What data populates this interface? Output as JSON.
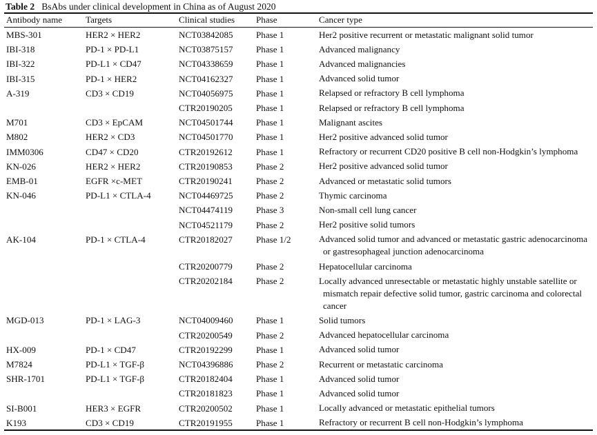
{
  "caption": {
    "label": "Table 2",
    "title": "BsAbs under clinical development in China as of August 2020"
  },
  "columns": [
    "Antibody name",
    "Targets",
    "Clinical studies",
    "Phase",
    "Cancer type"
  ],
  "rows": [
    {
      "antibody": "MBS-301",
      "targets": "HER2 × HER2",
      "study": "NCT03842085",
      "phase": "Phase 1",
      "cancer": "Her2 positive recurrent or metastatic malignant solid tumor"
    },
    {
      "antibody": "IBI-318",
      "targets": "PD-1 × PD-L1",
      "study": "NCT03875157",
      "phase": "Phase 1",
      "cancer": "Advanced malignancy"
    },
    {
      "antibody": "IBI-322",
      "targets": "PD-L1 × CD47",
      "study": "NCT04338659",
      "phase": "Phase 1",
      "cancer": "Advanced malignancies"
    },
    {
      "antibody": "IBI-315",
      "targets": "PD-1 × HER2",
      "study": "NCT04162327",
      "phase": "Phase 1",
      "cancer": "Advanced solid tumor"
    },
    {
      "antibody": "A-319",
      "targets": "CD3 × CD19",
      "study": "NCT04056975",
      "phase": "Phase 1",
      "cancer": "Relapsed or refractory B cell lymphoma"
    },
    {
      "antibody": "",
      "targets": "",
      "study": "CTR20190205",
      "phase": "Phase 1",
      "cancer": "Relapsed or refractory B cell lymphoma"
    },
    {
      "antibody": "M701",
      "targets": "CD3 × EpCAM",
      "study": "NCT04501744",
      "phase": "Phase 1",
      "cancer": "Malignant ascites"
    },
    {
      "antibody": "M802",
      "targets": "HER2 × CD3",
      "study": "NCT04501770",
      "phase": "Phase 1",
      "cancer": "Her2 positive advanced solid tumor"
    },
    {
      "antibody": "IMM0306",
      "targets": "CD47 × CD20",
      "study": "CTR20192612",
      "phase": "Phase 1",
      "cancer": "Refractory or recurrent CD20 positive B cell non-Hodgkin’s lymphoma"
    },
    {
      "antibody": "KN-026",
      "targets": "HER2 × HER2",
      "study": "CTR20190853",
      "phase": "Phase 2",
      "cancer": "Her2 positive advanced solid tumor"
    },
    {
      "antibody": "EMB-01",
      "targets": "EGFR ×c-MET",
      "study": "CTR20190241",
      "phase": "Phase 2",
      "cancer": "Advanced or metastatic solid tumors"
    },
    {
      "antibody": "KN-046",
      "targets": "PD-L1 × CTLA-4",
      "study": "NCT04469725",
      "phase": "Phase 2",
      "cancer": "Thymic carcinoma"
    },
    {
      "antibody": "",
      "targets": "",
      "study": "NCT04474119",
      "phase": "Phase 3",
      "cancer": "Non-small cell lung cancer"
    },
    {
      "antibody": "",
      "targets": "",
      "study": "NCT04521179",
      "phase": "Phase 2",
      "cancer": "Her2 positive solid tumors"
    },
    {
      "antibody": "AK-104",
      "targets": "PD-1 × CTLA-4",
      "study": "CTR20182027",
      "phase": "Phase 1/2",
      "cancer": "Advanced solid tumor and advanced or metastatic gastric adenocarcinoma or gastresophageal junction adenocarcinoma"
    },
    {
      "antibody": "",
      "targets": "",
      "study": "CTR20200779",
      "phase": "Phase 2",
      "cancer": "Hepatocellular carcinoma"
    },
    {
      "antibody": "",
      "targets": "",
      "study": "CTR20202184",
      "phase": "Phase 2",
      "cancer": "Locally advanced unresectable or metastatic highly unstable satellite or mismatch repair defective solid tumor, gastric carcinoma and colorectal cancer"
    },
    {
      "antibody": "MGD-013",
      "targets": "PD-1 × LAG-3",
      "study": "NCT04009460",
      "phase": "Phase 1",
      "cancer": "Solid tumors"
    },
    {
      "antibody": "",
      "targets": "",
      "study": "CTR20200549",
      "phase": "Phase 2",
      "cancer": "Advanced hepatocellular carcinoma"
    },
    {
      "antibody": "HX-009",
      "targets": "PD-1 × CD47",
      "study": "CTR20192299",
      "phase": "Phase 1",
      "cancer": "Advanced solid tumor"
    },
    {
      "antibody": "M7824",
      "targets": "PD-L1 × TGF-β",
      "study": "NCT04396886",
      "phase": "Phase 2",
      "cancer": "Recurrent or metastatic carcinoma"
    },
    {
      "antibody": "SHR-1701",
      "targets": "PD-L1 × TGF-β",
      "study": "CTR20182404",
      "phase": "Phase 1",
      "cancer": "Advanced solid tumor"
    },
    {
      "antibody": "",
      "targets": "",
      "study": "CTR20181823",
      "phase": "Phase 1",
      "cancer": "Advanced solid tumor"
    },
    {
      "antibody": "SI-B001",
      "targets": "HER3 × EGFR",
      "study": "CTR20200502",
      "phase": "Phase 1",
      "cancer": "Locally advanced or metastatic epithelial tumors"
    },
    {
      "antibody": "K193",
      "targets": "CD3 × CD19",
      "study": "CTR20191955",
      "phase": "Phase 1",
      "cancer": "Refractory or recurrent B cell non-Hodgkin’s lymphoma"
    }
  ]
}
